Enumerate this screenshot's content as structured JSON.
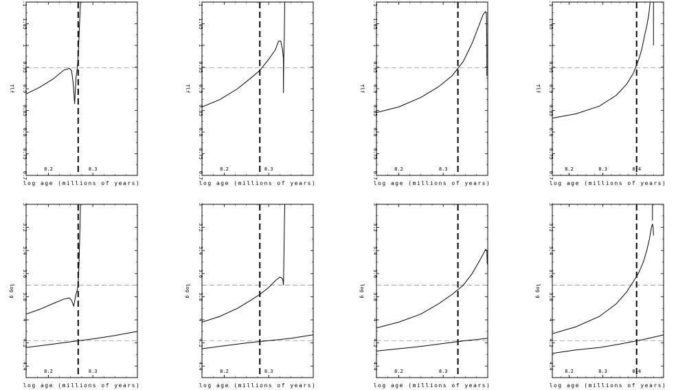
{
  "chart_data": [
    {
      "type": "line",
      "row": "top",
      "col": 0,
      "xlabel": "log age (millions of years)",
      "ylabel": "Tlf",
      "xlim": [
        8.15,
        8.4
      ],
      "ylim": [
        0.7,
        1.1
      ],
      "y_reverse": false,
      "xticks": [
        8.2,
        8.3
      ],
      "yticks": [
        0.7,
        0.75,
        0.8,
        0.85,
        0.9,
        0.95,
        1,
        1.05,
        1.1
      ],
      "hline_dashed": [
        0.948
      ],
      "vline_dashed": 8.267,
      "series": [
        {
          "points": [
            [
              8.15,
              0.888
            ],
            [
              8.18,
              0.903
            ],
            [
              8.21,
              0.922
            ],
            [
              8.235,
              0.943
            ],
            [
              8.247,
              0.947
            ],
            [
              8.252,
              0.942
            ],
            [
              8.255,
              0.92
            ],
            [
              8.257,
              0.898
            ],
            [
              8.259,
              0.865
            ],
            [
              8.26,
              0.885
            ],
            [
              8.262,
              0.925
            ],
            [
              8.264,
              0.94
            ],
            [
              8.266,
              0.96
            ],
            [
              8.268,
              1.0
            ],
            [
              8.27,
              1.05
            ],
            [
              8.272,
              1.1
            ]
          ]
        }
      ]
    },
    {
      "type": "line",
      "row": "top",
      "col": 1,
      "xlabel": "log age (millions of years)",
      "ylabel": "Tlf",
      "xlim": [
        8.15,
        8.4
      ],
      "ylim": [
        0.7,
        1.1
      ],
      "y_reverse": false,
      "xticks": [
        8.2,
        8.3
      ],
      "yticks": [
        0.7,
        0.75,
        0.8,
        0.85,
        0.9,
        0.95,
        1,
        1.05,
        1.1
      ],
      "hline_dashed": [
        0.948
      ],
      "vline_dashed": 8.28,
      "series": [
        {
          "points": [
            [
              8.15,
              0.858
            ],
            [
              8.19,
              0.875
            ],
            [
              8.23,
              0.9
            ],
            [
              8.26,
              0.925
            ],
            [
              8.28,
              0.942
            ],
            [
              8.3,
              0.968
            ],
            [
              8.315,
              0.99
            ],
            [
              8.322,
              1.01
            ],
            [
              8.327,
              1.01
            ],
            [
              8.331,
              0.99
            ],
            [
              8.333,
              0.97
            ],
            [
              8.333,
              0.89
            ],
            [
              8.334,
              0.98
            ],
            [
              8.335,
              1.02
            ],
            [
              8.336,
              1.1
            ]
          ]
        }
      ]
    },
    {
      "type": "line",
      "row": "top",
      "col": 2,
      "xlabel": "log age (millions of years)",
      "ylabel": "Tlf",
      "xlim": [
        8.15,
        8.4
      ],
      "ylim": [
        0.7,
        1.1
      ],
      "y_reverse": false,
      "xticks": [
        8.2,
        8.3
      ],
      "yticks": [
        0.7,
        0.75,
        0.8,
        0.85,
        0.9,
        0.95,
        1,
        1.05,
        1.1
      ],
      "hline_dashed": [
        0.948
      ],
      "vline_dashed": 8.333,
      "series": [
        {
          "points": [
            [
              8.15,
              0.845
            ],
            [
              8.2,
              0.858
            ],
            [
              8.25,
              0.88
            ],
            [
              8.29,
              0.905
            ],
            [
              8.32,
              0.93
            ],
            [
              8.345,
              0.963
            ],
            [
              8.365,
              1.005
            ],
            [
              8.38,
              1.045
            ],
            [
              8.39,
              1.072
            ],
            [
              8.395,
              1.078
            ],
            [
              8.397,
              1.072
            ],
            [
              8.398,
              1.0
            ],
            [
              8.398,
              0.93
            ]
          ]
        }
      ]
    },
    {
      "type": "line",
      "row": "top",
      "col": 3,
      "xlabel": "log age (millions of years)",
      "ylabel": "Tlf",
      "xlim": [
        8.15,
        8.48
      ],
      "ylim": [
        0.7,
        1.1
      ],
      "y_reverse": false,
      "xticks": [
        8.2,
        8.3,
        8.4
      ],
      "yticks": [
        0.7,
        0.75,
        0.8,
        0.85,
        0.9,
        0.95,
        1,
        1.05,
        1.1
      ],
      "hline_dashed": [
        0.948
      ],
      "vline_dashed": 8.4,
      "series": [
        {
          "points": [
            [
              8.15,
              0.832
            ],
            [
              8.22,
              0.842
            ],
            [
              8.29,
              0.86
            ],
            [
              8.34,
              0.885
            ],
            [
              8.37,
              0.91
            ],
            [
              8.39,
              0.935
            ],
            [
              8.405,
              0.965
            ],
            [
              8.415,
              0.99
            ],
            [
              8.423,
              1.02
            ],
            [
              8.43,
              1.045
            ],
            [
              8.436,
              1.07
            ],
            [
              8.44,
              1.1
            ]
          ]
        },
        {
          "points": [
            [
              8.45,
              1.1
            ],
            [
              8.45,
              1.0
            ]
          ]
        }
      ]
    },
    {
      "type": "line",
      "row": "bottom",
      "col": 0,
      "xlabel": "log age (millions of years)",
      "ylabel": "log g",
      "xlim": [
        8.15,
        8.4
      ],
      "ylim": [
        3.0,
        4.5
      ],
      "y_reverse": true,
      "xticks": [
        8.2,
        8.3
      ],
      "yticks": [
        3,
        3.2,
        3.4,
        3.6,
        3.8,
        4,
        4.2,
        4.4
      ],
      "hline_dashed": [
        3.7,
        4.18
      ],
      "vline_dashed": 8.267,
      "series": [
        {
          "points": [
            [
              8.15,
              3.95
            ],
            [
              8.18,
              3.91
            ],
            [
              8.21,
              3.86
            ],
            [
              8.235,
              3.82
            ],
            [
              8.247,
              3.81
            ],
            [
              8.252,
              3.83
            ],
            [
              8.255,
              3.86
            ],
            [
              8.257,
              3.88
            ],
            [
              8.259,
              3.84
            ],
            [
              8.262,
              3.78
            ],
            [
              8.265,
              3.74
            ],
            [
              8.267,
              3.69
            ],
            [
              8.269,
              3.5
            ],
            [
              8.271,
              3.2
            ],
            [
              8.272,
              3.0
            ]
          ]
        },
        {
          "points": [
            [
              8.15,
              4.24
            ],
            [
              8.2,
              4.215
            ],
            [
              8.25,
              4.19
            ],
            [
              8.3,
              4.165
            ],
            [
              8.35,
              4.135
            ],
            [
              8.4,
              4.1
            ]
          ]
        }
      ]
    },
    {
      "type": "line",
      "row": "bottom",
      "col": 1,
      "xlabel": "log age (millions of years)",
      "ylabel": "log g",
      "xlim": [
        8.15,
        8.4
      ],
      "ylim": [
        3.0,
        4.5
      ],
      "y_reverse": true,
      "xticks": [
        8.2,
        8.3
      ],
      "yticks": [
        3,
        3.2,
        3.4,
        3.6,
        3.8,
        4,
        4.2,
        4.4
      ],
      "hline_dashed": [
        3.7,
        4.18
      ],
      "vline_dashed": 8.28,
      "series": [
        {
          "points": [
            [
              8.15,
              4.02
            ],
            [
              8.19,
              3.97
            ],
            [
              8.23,
              3.9
            ],
            [
              8.26,
              3.83
            ],
            [
              8.28,
              3.78
            ],
            [
              8.3,
              3.72
            ],
            [
              8.315,
              3.66
            ],
            [
              8.325,
              3.63
            ],
            [
              8.33,
              3.64
            ],
            [
              8.332,
              3.66
            ],
            [
              8.333,
              3.7
            ],
            [
              8.334,
              3.5
            ],
            [
              8.335,
              3.2
            ],
            [
              8.336,
              3.0
            ]
          ]
        },
        {
          "points": [
            [
              8.15,
              4.25
            ],
            [
              8.2,
              4.225
            ],
            [
              8.25,
              4.2
            ],
            [
              8.3,
              4.18
            ],
            [
              8.35,
              4.16
            ],
            [
              8.4,
              4.13
            ]
          ]
        }
      ]
    },
    {
      "type": "line",
      "row": "bottom",
      "col": 2,
      "xlabel": "log age (millions of years)",
      "ylabel": "log g",
      "xlim": [
        8.15,
        8.4
      ],
      "ylim": [
        3.0,
        4.5
      ],
      "y_reverse": true,
      "xticks": [
        8.2,
        8.3
      ],
      "yticks": [
        3,
        3.2,
        3.4,
        3.6,
        3.8,
        4,
        4.2,
        4.4
      ],
      "hline_dashed": [
        3.7,
        4.18
      ],
      "vline_dashed": 8.333,
      "series": [
        {
          "points": [
            [
              8.15,
              4.07
            ],
            [
              8.2,
              4.02
            ],
            [
              8.25,
              3.95
            ],
            [
              8.29,
              3.86
            ],
            [
              8.32,
              3.78
            ],
            [
              8.345,
              3.7
            ],
            [
              8.365,
              3.6
            ],
            [
              8.38,
              3.5
            ],
            [
              8.39,
              3.43
            ],
            [
              8.395,
              3.39
            ],
            [
              8.398,
              3.4
            ],
            [
              8.399,
              3.52
            ]
          ]
        },
        {
          "points": [
            [
              8.15,
              4.27
            ],
            [
              8.2,
              4.25
            ],
            [
              8.25,
              4.23
            ],
            [
              8.3,
              4.205
            ],
            [
              8.35,
              4.18
            ],
            [
              8.4,
              4.16
            ]
          ]
        }
      ]
    },
    {
      "type": "line",
      "row": "bottom",
      "col": 3,
      "xlabel": "log age (millions of years)",
      "ylabel": "log g",
      "xlim": [
        8.15,
        8.48
      ],
      "ylim": [
        3.0,
        4.5
      ],
      "y_reverse": true,
      "xticks": [
        8.2,
        8.3,
        8.4
      ],
      "yticks": [
        3,
        3.2,
        3.4,
        3.6,
        3.8,
        4,
        4.2,
        4.4
      ],
      "hline_dashed": [
        3.7,
        4.18
      ],
      "vline_dashed": 8.4,
      "series": [
        {
          "points": [
            [
              8.15,
              4.12
            ],
            [
              8.22,
              4.06
            ],
            [
              8.29,
              3.97
            ],
            [
              8.34,
              3.86
            ],
            [
              8.37,
              3.76
            ],
            [
              8.39,
              3.67
            ],
            [
              8.405,
              3.6
            ],
            [
              8.42,
              3.5
            ],
            [
              8.43,
              3.4
            ],
            [
              8.438,
              3.3
            ],
            [
              8.444,
              3.2
            ],
            [
              8.447,
              3.17
            ],
            [
              8.449,
              3.2
            ],
            [
              8.45,
              3.27
            ]
          ]
        },
        {
          "points": [
            [
              8.447,
              3.0
            ],
            [
              8.447,
              3.14
            ]
          ]
        },
        {
          "points": [
            [
              8.15,
              4.29
            ],
            [
              8.22,
              4.26
            ],
            [
              8.29,
              4.24
            ],
            [
              8.35,
              4.21
            ],
            [
              8.42,
              4.17
            ],
            [
              8.48,
              4.13
            ]
          ]
        }
      ]
    }
  ]
}
